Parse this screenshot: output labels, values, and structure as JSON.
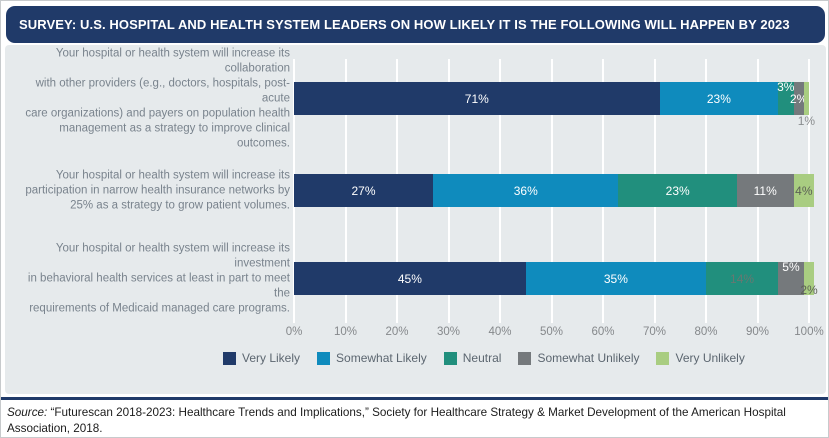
{
  "header": {
    "title": "SURVEY: U.S. HOSPITAL AND HEALTH SYSTEM LEADERS ON HOW LIKELY IT IS THE FOLLOWING WILL HAPPEN BY 2023"
  },
  "colors": {
    "header_bg": "#203a69",
    "panel_bg": "#e6eaec",
    "separator": "#203a69",
    "very_likely": "#203a69",
    "somewhat_likely": "#0f8bbd",
    "neutral": "#218f7d",
    "somewhat_unlikely": "#75797c",
    "very_unlikely": "#a9cd81"
  },
  "chart_data": {
    "type": "bar",
    "stacked": true,
    "orientation": "horizontal",
    "xlim": [
      0,
      100
    ],
    "grid": true,
    "legend_position": "bottom",
    "x_ticks": [
      "0%",
      "10%",
      "20%",
      "30%",
      "40%",
      "50%",
      "60%",
      "70%",
      "80%",
      "90%",
      "100%"
    ],
    "legend": [
      {
        "label": "Very Likely",
        "color": "#203a69"
      },
      {
        "label": "Somewhat Likely",
        "color": "#0f8bbd"
      },
      {
        "label": "Neutral",
        "color": "#218f7d"
      },
      {
        "label": "Somewhat Unlikely",
        "color": "#75797c"
      },
      {
        "label": "Very Unlikely",
        "color": "#a9cd81"
      }
    ],
    "categories": [
      "Your hospital or health system will increase its collaboration with other providers (e.g., doctors, hospitals, post-acute care organizations) and payers on population health management as a strategy to improve clinical outcomes.",
      "Your hospital or health system will increase its participation in narrow health insurance networks by 25% as a strategy to grow patient volumes.",
      "Your hospital or health system will increase its investment in behavioral health services at least in part to meet the requirements of Medicaid managed care programs."
    ],
    "series": [
      {
        "name": "Very Likely",
        "color": "#203a69",
        "values": [
          71,
          27,
          45
        ]
      },
      {
        "name": "Somewhat Likely",
        "color": "#0f8bbd",
        "values": [
          23,
          36,
          35
        ]
      },
      {
        "name": "Neutral",
        "color": "#218f7d",
        "values": [
          3,
          23,
          14
        ]
      },
      {
        "name": "Somewhat Unlikely",
        "color": "#75797c",
        "values": [
          2,
          11,
          5
        ]
      },
      {
        "name": "Very Unlikely",
        "color": "#a9cd81",
        "values": [
          1,
          4,
          2
        ]
      }
    ],
    "rows": [
      {
        "question_lines": [
          "Your hospital or health system will increase its collaboration",
          "with other providers (e.g., doctors, hospitals, post-acute",
          "care organizations) and payers on population health",
          "management as a strategy to improve clinical outcomes."
        ],
        "segments": [
          {
            "label": "71%",
            "value": 71,
            "color": "#203a69",
            "text_color": "#ffffff",
            "placement": "in"
          },
          {
            "label": "23%",
            "value": 23,
            "color": "#0f8bbd",
            "text_color": "#ffffff",
            "placement": "in"
          },
          {
            "label": "3%",
            "value": 3,
            "color": "#218f7d",
            "text_color": "#ffffff",
            "placement": "top"
          },
          {
            "label": "2%",
            "value": 2,
            "color": "#75797c",
            "text_color": "#ffffff",
            "placement": "mid"
          },
          {
            "label": "1%",
            "value": 1,
            "color": "#a9cd81",
            "text_color": "#8a8d8f",
            "placement": "below"
          }
        ]
      },
      {
        "question_lines": [
          "Your hospital or health system will increase its",
          "participation in narrow health insurance networks by",
          "25% as a strategy to grow patient volumes."
        ],
        "segments": [
          {
            "label": "27%",
            "value": 27,
            "color": "#203a69",
            "text_color": "#ffffff",
            "placement": "in"
          },
          {
            "label": "36%",
            "value": 36,
            "color": "#0f8bbd",
            "text_color": "#ffffff",
            "placement": "in"
          },
          {
            "label": "23%",
            "value": 23,
            "color": "#218f7d",
            "text_color": "#ffffff",
            "placement": "in"
          },
          {
            "label": "11%",
            "value": 11,
            "color": "#75797c",
            "text_color": "#ffffff",
            "placement": "in"
          },
          {
            "label": "4%",
            "value": 4,
            "color": "#a9cd81",
            "text_color": "#5c6155",
            "placement": "in"
          }
        ]
      },
      {
        "question_lines": [
          "Your hospital or health system will increase its investment",
          "in behavioral health services at least in part to meet the",
          "requirements of Medicaid managed care programs."
        ],
        "segments": [
          {
            "label": "45%",
            "value": 45,
            "color": "#203a69",
            "text_color": "#ffffff",
            "placement": "in"
          },
          {
            "label": "35%",
            "value": 35,
            "color": "#0f8bbd",
            "text_color": "#ffffff",
            "placement": "in"
          },
          {
            "label": "14%",
            "value": 14,
            "color": "#218f7d",
            "text_color": "#677871",
            "placement": "in"
          },
          {
            "label": "5%",
            "value": 5,
            "color": "#75797c",
            "text_color": "#ffffff",
            "placement": "top"
          },
          {
            "label": "2%",
            "value": 2,
            "color": "#a9cd81",
            "text_color": "#5c6155",
            "placement": "low"
          }
        ]
      }
    ]
  },
  "source": {
    "prefix": "Source:",
    "text": " “Futurescan 2018-2023: Healthcare Trends and Implications,” Society for Healthcare Strategy & Market Development of the American Hospital Association, 2018."
  }
}
